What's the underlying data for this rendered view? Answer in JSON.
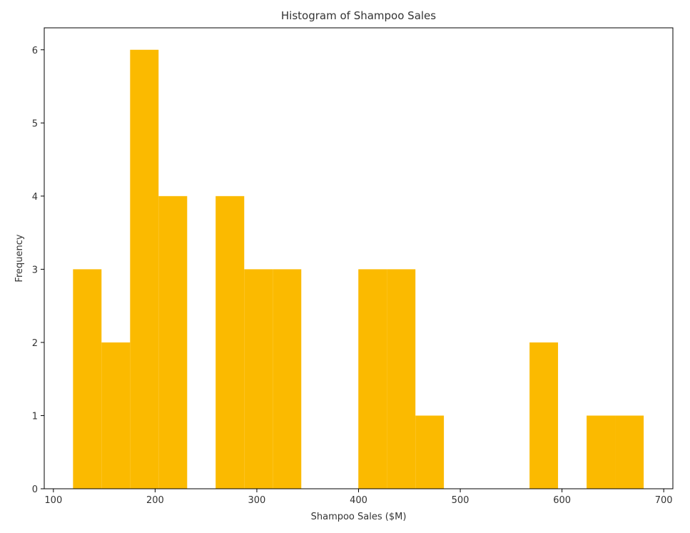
{
  "chart_data": {
    "type": "bar",
    "title": "Histogram of Shampoo Sales",
    "xlabel": "Shampoo Sales ($M)",
    "ylabel": "Frequency",
    "bar_color": "#FBBA00",
    "xlim": [
      91,
      709
    ],
    "ylim": [
      0,
      6.3
    ],
    "xticks": [
      100,
      200,
      300,
      400,
      500,
      600,
      700
    ],
    "yticks": [
      0,
      1,
      2,
      3,
      4,
      5,
      6
    ],
    "grid": false,
    "bins": [
      {
        "start": 119.3,
        "end": 147.3,
        "count": 3
      },
      {
        "start": 147.3,
        "end": 175.4,
        "count": 2
      },
      {
        "start": 175.4,
        "end": 203.4,
        "count": 6
      },
      {
        "start": 203.4,
        "end": 231.5,
        "count": 4
      },
      {
        "start": 231.5,
        "end": 259.5,
        "count": 0
      },
      {
        "start": 259.5,
        "end": 287.6,
        "count": 4
      },
      {
        "start": 287.6,
        "end": 315.6,
        "count": 3
      },
      {
        "start": 315.6,
        "end": 343.7,
        "count": 3
      },
      {
        "start": 343.7,
        "end": 371.7,
        "count": 0
      },
      {
        "start": 371.7,
        "end": 399.8,
        "count": 0
      },
      {
        "start": 399.8,
        "end": 427.8,
        "count": 3
      },
      {
        "start": 427.8,
        "end": 455.9,
        "count": 3
      },
      {
        "start": 455.9,
        "end": 483.9,
        "count": 1
      },
      {
        "start": 483.9,
        "end": 512.0,
        "count": 0
      },
      {
        "start": 512.0,
        "end": 540.0,
        "count": 0
      },
      {
        "start": 540.0,
        "end": 568.1,
        "count": 0
      },
      {
        "start": 568.1,
        "end": 596.1,
        "count": 2
      },
      {
        "start": 596.1,
        "end": 624.2,
        "count": 0
      },
      {
        "start": 624.2,
        "end": 652.2,
        "count": 1
      },
      {
        "start": 652.2,
        "end": 680.3,
        "count": 1
      }
    ]
  }
}
